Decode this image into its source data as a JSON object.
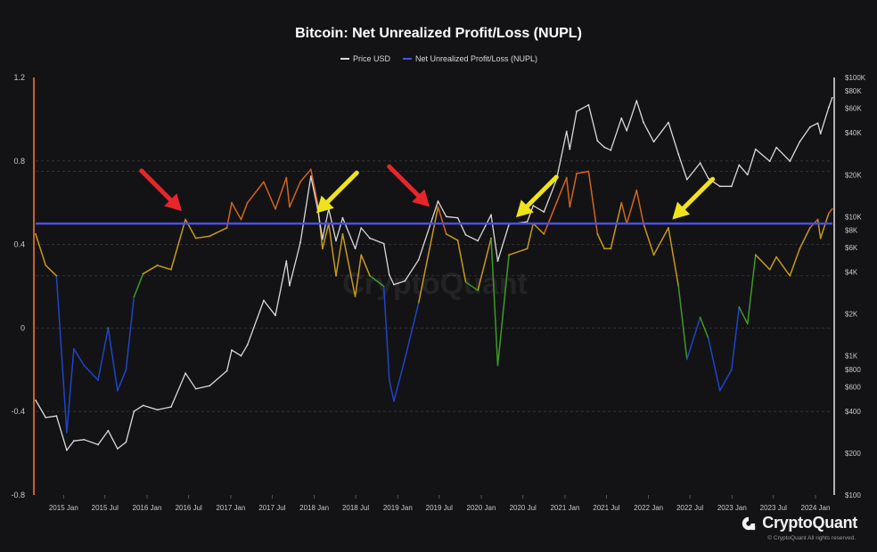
{
  "chart_data": {
    "type": "line",
    "title": "Bitcoin: Net Unrealized Profit/Loss (NUPL)",
    "legend": [
      {
        "name": "Price USD",
        "color": "#d9d9d9"
      },
      {
        "name": "Net Unrealized Profit/Loss (NUPL)",
        "color": "#4a4ee8"
      }
    ],
    "legend_position": "top-center",
    "x_ticks": [
      "2015 Jan",
      "2015 Jul",
      "2016 Jan",
      "2016 Jul",
      "2017 Jan",
      "2017 Jul",
      "2018 Jan",
      "2018 Jul",
      "2019 Jan",
      "2019 Jul",
      "2020 Jan",
      "2020 Jul",
      "2021 Jan",
      "2021 Jul",
      "2022 Jan",
      "2022 Jul",
      "2023 Jan",
      "2023 Jul",
      "2024 Jan"
    ],
    "x_range": [
      "2014-09-01",
      "2024-03-15"
    ],
    "y_left": {
      "ylim": [
        -0.8,
        1.2
      ],
      "ticks": [
        "1.2",
        "0.8",
        "0.4",
        "0",
        "-0.4",
        "-0.8"
      ]
    },
    "y_right": {
      "scale": "log",
      "ylim": [
        100,
        100000
      ],
      "ticks": [
        "$100K",
        "$80K",
        "$60K",
        "$40K",
        "$20K",
        "$10K",
        "$8K",
        "$6K",
        "$4K",
        "$2K",
        "$1K",
        "$800",
        "$600",
        "$400",
        "$200",
        "$100"
      ]
    },
    "reference_line": {
      "value": 0.5,
      "color": "#4a4ee8"
    },
    "nupl_color_bands": [
      {
        "min": -1.0,
        "max": 0.0,
        "color": "#1f45c8"
      },
      {
        "min": 0.0,
        "max": 0.25,
        "color": "#3f9a25"
      },
      {
        "min": 0.25,
        "max": 0.5,
        "color": "#c79a16"
      },
      {
        "min": 0.5,
        "max": 0.75,
        "color": "#d2651c"
      },
      {
        "min": 0.75,
        "max": 1.0,
        "color": "#ee4040"
      }
    ],
    "series": [
      {
        "name": "Price USD",
        "axis": "right",
        "points": [
          [
            "2014-09-01",
            480
          ],
          [
            "2014-10-15",
            360
          ],
          [
            "2014-12-01",
            370
          ],
          [
            "2015-01-15",
            210
          ],
          [
            "2015-02-15",
            245
          ],
          [
            "2015-04-01",
            250
          ],
          [
            "2015-06-01",
            230
          ],
          [
            "2015-07-15",
            290
          ],
          [
            "2015-08-25",
            215
          ],
          [
            "2015-10-01",
            240
          ],
          [
            "2015-11-05",
            400
          ],
          [
            "2015-12-15",
            440
          ],
          [
            "2016-02-15",
            410
          ],
          [
            "2016-04-15",
            430
          ],
          [
            "2016-06-17",
            750
          ],
          [
            "2016-08-01",
            580
          ],
          [
            "2016-10-01",
            610
          ],
          [
            "2016-12-15",
            780
          ],
          [
            "2017-01-05",
            1100
          ],
          [
            "2017-02-15",
            1000
          ],
          [
            "2017-03-15",
            1200
          ],
          [
            "2017-05-25",
            2500
          ],
          [
            "2017-07-15",
            1950
          ],
          [
            "2017-09-01",
            4800
          ],
          [
            "2017-09-15",
            3200
          ],
          [
            "2017-11-01",
            6500
          ],
          [
            "2017-12-17",
            19500
          ],
          [
            "2018-01-15",
            11500
          ],
          [
            "2018-02-06",
            6900
          ],
          [
            "2018-03-05",
            11400
          ],
          [
            "2018-04-06",
            6700
          ],
          [
            "2018-05-05",
            9800
          ],
          [
            "2018-06-29",
            5900
          ],
          [
            "2018-07-25",
            8300
          ],
          [
            "2018-09-01",
            7000
          ],
          [
            "2018-11-01",
            6400
          ],
          [
            "2018-11-25",
            3800
          ],
          [
            "2018-12-15",
            3250
          ],
          [
            "2019-02-01",
            3450
          ],
          [
            "2019-04-02",
            4900
          ],
          [
            "2019-06-26",
            12900
          ],
          [
            "2019-08-01",
            10000
          ],
          [
            "2019-09-20",
            9800
          ],
          [
            "2019-10-25",
            7400
          ],
          [
            "2019-12-17",
            6700
          ],
          [
            "2020-02-13",
            10300
          ],
          [
            "2020-03-13",
            4800
          ],
          [
            "2020-05-01",
            8800
          ],
          [
            "2020-07-20",
            9200
          ],
          [
            "2020-08-15",
            12000
          ],
          [
            "2020-10-01",
            10800
          ],
          [
            "2020-11-25",
            18500
          ],
          [
            "2021-01-08",
            41000
          ],
          [
            "2021-01-22",
            30500
          ],
          [
            "2021-02-21",
            57000
          ],
          [
            "2021-04-14",
            63500
          ],
          [
            "2021-05-23",
            35000
          ],
          [
            "2021-06-22",
            31500
          ],
          [
            "2021-07-20",
            30000
          ],
          [
            "2021-09-05",
            51000
          ],
          [
            "2021-09-28",
            41500
          ],
          [
            "2021-11-10",
            68000
          ],
          [
            "2021-12-10",
            47500
          ],
          [
            "2022-01-24",
            34500
          ],
          [
            "2022-03-29",
            47500
          ],
          [
            "2022-05-12",
            28000
          ],
          [
            "2022-06-18",
            18500
          ],
          [
            "2022-08-15",
            24300
          ],
          [
            "2022-09-20",
            18800
          ],
          [
            "2022-11-09",
            16500
          ],
          [
            "2022-12-30",
            16500
          ],
          [
            "2023-02-01",
            23500
          ],
          [
            "2023-03-10",
            20000
          ],
          [
            "2023-04-14",
            30500
          ],
          [
            "2023-06-15",
            25000
          ],
          [
            "2023-07-14",
            31400
          ],
          [
            "2023-09-11",
            25000
          ],
          [
            "2023-10-24",
            34500
          ],
          [
            "2023-12-08",
            44000
          ],
          [
            "2024-01-11",
            47000
          ],
          [
            "2024-01-23",
            39500
          ],
          [
            "2024-02-28",
            61000
          ],
          [
            "2024-03-14",
            71500
          ]
        ]
      },
      {
        "name": "Net Unrealized Profit/Loss (NUPL)",
        "axis": "left",
        "points": [
          [
            "2014-09-01",
            0.45
          ],
          [
            "2014-10-15",
            0.3
          ],
          [
            "2014-12-01",
            0.25
          ],
          [
            "2015-01-15",
            -0.5
          ],
          [
            "2015-02-15",
            -0.1
          ],
          [
            "2015-04-01",
            -0.18
          ],
          [
            "2015-06-01",
            -0.25
          ],
          [
            "2015-07-15",
            0.0
          ],
          [
            "2015-08-25",
            -0.3
          ],
          [
            "2015-10-01",
            -0.2
          ],
          [
            "2015-11-05",
            0.15
          ],
          [
            "2015-12-15",
            0.26
          ],
          [
            "2016-02-15",
            0.3
          ],
          [
            "2016-04-15",
            0.28
          ],
          [
            "2016-06-17",
            0.52
          ],
          [
            "2016-08-01",
            0.43
          ],
          [
            "2016-10-01",
            0.44
          ],
          [
            "2016-12-15",
            0.48
          ],
          [
            "2017-01-05",
            0.6
          ],
          [
            "2017-02-15",
            0.52
          ],
          [
            "2017-03-15",
            0.6
          ],
          [
            "2017-05-25",
            0.7
          ],
          [
            "2017-07-15",
            0.57
          ],
          [
            "2017-09-01",
            0.72
          ],
          [
            "2017-09-15",
            0.58
          ],
          [
            "2017-11-01",
            0.7
          ],
          [
            "2017-12-17",
            0.76
          ],
          [
            "2018-01-15",
            0.6
          ],
          [
            "2018-02-06",
            0.38
          ],
          [
            "2018-03-05",
            0.5
          ],
          [
            "2018-04-06",
            0.25
          ],
          [
            "2018-05-05",
            0.45
          ],
          [
            "2018-06-29",
            0.15
          ],
          [
            "2018-07-25",
            0.35
          ],
          [
            "2018-09-01",
            0.25
          ],
          [
            "2018-11-01",
            0.2
          ],
          [
            "2018-11-25",
            -0.25
          ],
          [
            "2018-12-15",
            -0.35
          ],
          [
            "2019-02-01",
            -0.15
          ],
          [
            "2019-04-02",
            0.12
          ],
          [
            "2019-06-26",
            0.58
          ],
          [
            "2019-08-01",
            0.45
          ],
          [
            "2019-09-20",
            0.42
          ],
          [
            "2019-10-25",
            0.22
          ],
          [
            "2019-12-17",
            0.18
          ],
          [
            "2020-02-13",
            0.43
          ],
          [
            "2020-03-13",
            -0.18
          ],
          [
            "2020-05-01",
            0.35
          ],
          [
            "2020-07-20",
            0.38
          ],
          [
            "2020-08-15",
            0.5
          ],
          [
            "2020-10-01",
            0.45
          ],
          [
            "2020-11-25",
            0.6
          ],
          [
            "2021-01-08",
            0.72
          ],
          [
            "2021-01-22",
            0.58
          ],
          [
            "2021-02-21",
            0.74
          ],
          [
            "2021-04-14",
            0.75
          ],
          [
            "2021-05-23",
            0.45
          ],
          [
            "2021-06-22",
            0.38
          ],
          [
            "2021-07-20",
            0.38
          ],
          [
            "2021-09-05",
            0.6
          ],
          [
            "2021-09-28",
            0.5
          ],
          [
            "2021-11-10",
            0.66
          ],
          [
            "2021-12-10",
            0.5
          ],
          [
            "2022-01-24",
            0.35
          ],
          [
            "2022-03-29",
            0.48
          ],
          [
            "2022-05-12",
            0.2
          ],
          [
            "2022-06-18",
            -0.15
          ],
          [
            "2022-08-15",
            0.05
          ],
          [
            "2022-09-20",
            -0.05
          ],
          [
            "2022-11-09",
            -0.3
          ],
          [
            "2022-12-30",
            -0.2
          ],
          [
            "2023-02-01",
            0.1
          ],
          [
            "2023-03-10",
            0.02
          ],
          [
            "2023-04-14",
            0.35
          ],
          [
            "2023-06-15",
            0.28
          ],
          [
            "2023-07-14",
            0.34
          ],
          [
            "2023-09-11",
            0.25
          ],
          [
            "2023-10-24",
            0.38
          ],
          [
            "2023-12-08",
            0.48
          ],
          [
            "2024-01-11",
            0.52
          ],
          [
            "2024-01-23",
            0.43
          ],
          [
            "2024-02-28",
            0.55
          ],
          [
            "2024-03-14",
            0.57
          ]
        ]
      }
    ],
    "annotations": [
      {
        "type": "arrow",
        "color": "#e8262a",
        "tip_date": "2016-06-01",
        "tip_value": 0.56
      },
      {
        "type": "arrow",
        "color": "#f0e31b",
        "tip_date": "2018-01-10",
        "tip_value": 0.55
      },
      {
        "type": "arrow",
        "color": "#e8262a",
        "tip_date": "2019-05-20",
        "tip_value": 0.58
      },
      {
        "type": "arrow",
        "color": "#f0e31b",
        "tip_date": "2020-06-01",
        "tip_value": 0.53
      },
      {
        "type": "arrow",
        "color": "#f0e31b",
        "tip_date": "2022-04-15",
        "tip_value": 0.52
      }
    ],
    "watermark": "CryptoQuant"
  },
  "branding": {
    "logo_text": "CryptoQuant",
    "logo_icon": "cryptoquant-logo-icon",
    "copyright": "© CryptoQuant All rights reserved."
  },
  "colors": {
    "background": "#131316",
    "grid": "#3a3a3e",
    "price_line": "#d9d9d9",
    "nupl_line": "#4a4ee8",
    "axis_text": "#c8c8c8"
  }
}
